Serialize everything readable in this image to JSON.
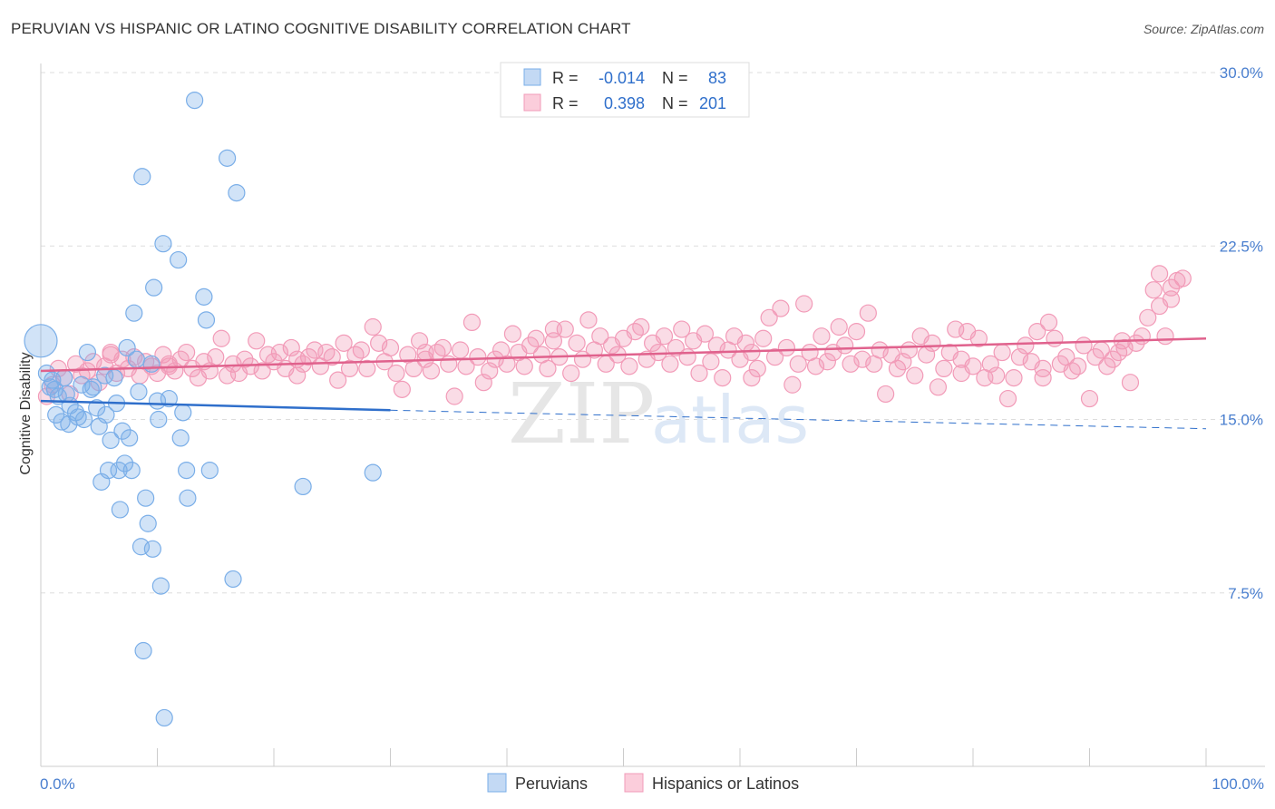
{
  "title": "PERUVIAN VS HISPANIC OR LATINO COGNITIVE DISABILITY CORRELATION CHART",
  "source": "Source: ZipAtlas.com",
  "watermark": {
    "zip": "ZIP",
    "atlas": "atlas"
  },
  "colors": {
    "blue": "#7aaee8",
    "blue_line": "#2f6fcb",
    "pink": "#f29bb8",
    "pink_line": "#e0628d",
    "axis_label": "#4a7fcf",
    "grid": "#dddddd"
  },
  "legend_top": {
    "rows": [
      {
        "r_label": "R =",
        "r_value": "-0.014",
        "n_label": "N =",
        "n_value": "83"
      },
      {
        "r_label": "R =",
        "r_value": "0.398",
        "n_label": "N =",
        "n_value": "201"
      }
    ]
  },
  "chart_data": {
    "type": "scatter",
    "ylabel": "Cognitive Disability",
    "x_axis": {
      "min": 0,
      "max": 100,
      "tick_labels": [
        "0.0%",
        "100.0%"
      ]
    },
    "y_axis": {
      "min": 0,
      "max": 30,
      "ticks": [
        7.5,
        15.0,
        22.5,
        30.0
      ],
      "tick_labels": [
        "7.5%",
        "15.0%",
        "22.5%",
        "30.0%"
      ]
    },
    "grid": true,
    "legend_position": "bottom",
    "series": [
      {
        "name": "Peruvians",
        "color": "#7aaee8",
        "trend": {
          "x": [
            0,
            30
          ],
          "y": [
            15.8,
            15.4
          ],
          "dashed_to": [
            100,
            14.6
          ]
        },
        "points": [
          [
            0,
            18.4
          ],
          [
            0.5,
            17.0
          ],
          [
            0.8,
            16.4
          ],
          [
            1,
            16.7
          ],
          [
            1.2,
            16.3
          ],
          [
            1.5,
            16.0
          ],
          [
            1.3,
            15.2
          ],
          [
            1.8,
            14.9
          ],
          [
            2,
            16.8
          ],
          [
            2.2,
            16.1
          ],
          [
            2.5,
            15.6
          ],
          [
            2.4,
            14.8
          ],
          [
            3,
            15.3
          ],
          [
            3.2,
            15.1
          ],
          [
            3.5,
            16.5
          ],
          [
            3.7,
            15.0
          ],
          [
            4,
            17.9
          ],
          [
            4.3,
            16.3
          ],
          [
            4.5,
            16.4
          ],
          [
            4.8,
            15.5
          ],
          [
            5,
            14.7
          ],
          [
            5.2,
            12.3
          ],
          [
            5.5,
            16.9
          ],
          [
            5.6,
            15.2
          ],
          [
            5.8,
            12.8
          ],
          [
            6,
            14.1
          ],
          [
            6.3,
            16.8
          ],
          [
            6.5,
            15.7
          ],
          [
            6.7,
            12.8
          ],
          [
            6.8,
            11.1
          ],
          [
            7,
            14.5
          ],
          [
            7.2,
            13.1
          ],
          [
            7.4,
            18.1
          ],
          [
            7.6,
            14.2
          ],
          [
            7.8,
            12.8
          ],
          [
            8,
            19.6
          ],
          [
            8.2,
            17.6
          ],
          [
            8.4,
            16.2
          ],
          [
            8.6,
            9.5
          ],
          [
            8.7,
            25.5
          ],
          [
            8.8,
            5.0
          ],
          [
            9,
            11.6
          ],
          [
            9.2,
            10.5
          ],
          [
            9.5,
            17.4
          ],
          [
            9.6,
            9.4
          ],
          [
            9.7,
            20.7
          ],
          [
            10,
            15.8
          ],
          [
            10.1,
            15.0
          ],
          [
            10.3,
            7.8
          ],
          [
            10.5,
            22.6
          ],
          [
            10.6,
            2.1
          ],
          [
            11,
            15.9
          ],
          [
            11.8,
            21.9
          ],
          [
            12.2,
            15.3
          ],
          [
            12.0,
            14.2
          ],
          [
            12.5,
            12.8
          ],
          [
            12.6,
            11.6
          ],
          [
            13.2,
            28.8
          ],
          [
            14,
            20.3
          ],
          [
            14.2,
            19.3
          ],
          [
            14.5,
            12.8
          ],
          [
            16,
            26.3
          ],
          [
            16.5,
            8.1
          ],
          [
            16.8,
            24.8
          ],
          [
            22.5,
            12.1
          ],
          [
            28.5,
            12.7
          ]
        ]
      },
      {
        "name": "Hispanics or Latinos",
        "color": "#f29bb8",
        "trend": {
          "x": [
            0,
            100
          ],
          "y": [
            17.1,
            18.5
          ]
        },
        "points": [
          [
            0.5,
            16.0
          ],
          [
            1,
            16.5
          ],
          [
            1.5,
            17.2
          ],
          [
            2,
            16.8
          ],
          [
            2.5,
            16.1
          ],
          [
            3,
            17.4
          ],
          [
            3.5,
            16.9
          ],
          [
            4,
            17.1
          ],
          [
            4.5,
            17.5
          ],
          [
            5,
            16.6
          ],
          [
            5.5,
            17.3
          ],
          [
            6,
            17.8
          ],
          [
            6.5,
            17.0
          ],
          [
            7,
            17.6
          ],
          [
            7.5,
            17.2
          ],
          [
            8,
            17.7
          ],
          [
            8.5,
            16.9
          ],
          [
            9,
            17.5
          ],
          [
            9.5,
            17.3
          ],
          [
            10,
            17.0
          ],
          [
            10.5,
            17.8
          ],
          [
            11,
            17.4
          ],
          [
            11.5,
            17.1
          ],
          [
            12,
            17.6
          ],
          [
            12.5,
            17.9
          ],
          [
            13,
            17.2
          ],
          [
            13.5,
            16.8
          ],
          [
            14,
            17.5
          ],
          [
            14.5,
            17.1
          ],
          [
            15,
            17.7
          ],
          [
            15.5,
            18.5
          ],
          [
            16,
            16.9
          ],
          [
            16.5,
            17.4
          ],
          [
            17,
            17.0
          ],
          [
            17.5,
            17.6
          ],
          [
            18,
            17.3
          ],
          [
            18.5,
            18.4
          ],
          [
            19,
            17.1
          ],
          [
            19.5,
            17.8
          ],
          [
            20,
            17.5
          ],
          [
            20.5,
            17.9
          ],
          [
            21,
            17.2
          ],
          [
            21.5,
            18.1
          ],
          [
            22,
            16.9
          ],
          [
            22.5,
            17.4
          ],
          [
            23,
            17.7
          ],
          [
            23.5,
            18.0
          ],
          [
            24,
            17.3
          ],
          [
            24.5,
            17.9
          ],
          [
            25,
            17.7
          ],
          [
            25.5,
            16.7
          ],
          [
            26,
            18.3
          ],
          [
            26.5,
            17.2
          ],
          [
            27,
            17.8
          ],
          [
            27.5,
            18.0
          ],
          [
            28,
            17.2
          ],
          [
            28.5,
            19.0
          ],
          [
            29,
            18.3
          ],
          [
            29.5,
            17.5
          ],
          [
            30,
            18.1
          ],
          [
            30.5,
            17.0
          ],
          [
            31,
            16.3
          ],
          [
            31.5,
            17.8
          ],
          [
            32,
            17.2
          ],
          [
            32.5,
            18.4
          ],
          [
            33,
            17.6
          ],
          [
            33.5,
            17.1
          ],
          [
            34,
            17.9
          ],
          [
            34.5,
            18.1
          ],
          [
            35,
            17.4
          ],
          [
            35.5,
            16.0
          ],
          [
            36,
            18.0
          ],
          [
            36.5,
            17.3
          ],
          [
            37,
            19.2
          ],
          [
            37.5,
            17.7
          ],
          [
            38,
            16.6
          ],
          [
            38.5,
            17.1
          ],
          [
            39,
            17.6
          ],
          [
            39.5,
            18.0
          ],
          [
            40,
            17.4
          ],
          [
            40.5,
            18.7
          ],
          [
            41,
            17.9
          ],
          [
            41.5,
            17.3
          ],
          [
            42,
            18.2
          ],
          [
            42.5,
            18.5
          ],
          [
            43,
            17.8
          ],
          [
            43.5,
            17.2
          ],
          [
            44,
            18.4
          ],
          [
            44.5,
            17.7
          ],
          [
            45,
            18.9
          ],
          [
            45.5,
            17.0
          ],
          [
            46,
            18.3
          ],
          [
            46.5,
            17.6
          ],
          [
            47,
            19.3
          ],
          [
            47.5,
            18.0
          ],
          [
            48,
            18.6
          ],
          [
            48.5,
            17.4
          ],
          [
            49,
            18.2
          ],
          [
            49.5,
            17.8
          ],
          [
            50,
            18.5
          ],
          [
            50.5,
            17.3
          ],
          [
            51,
            18.8
          ],
          [
            51.5,
            19.0
          ],
          [
            52,
            17.6
          ],
          [
            52.5,
            18.3
          ],
          [
            53,
            17.9
          ],
          [
            53.5,
            18.6
          ],
          [
            54,
            17.4
          ],
          [
            54.5,
            18.1
          ],
          [
            55,
            18.9
          ],
          [
            55.5,
            17.7
          ],
          [
            56,
            18.4
          ],
          [
            56.5,
            17.0
          ],
          [
            57,
            18.7
          ],
          [
            57.5,
            17.5
          ],
          [
            58,
            18.2
          ],
          [
            58.5,
            16.8
          ],
          [
            59,
            18.0
          ],
          [
            59.5,
            18.6
          ],
          [
            60,
            17.6
          ],
          [
            60.5,
            18.3
          ],
          [
            61,
            17.9
          ],
          [
            61.5,
            17.2
          ],
          [
            62,
            18.5
          ],
          [
            62.5,
            19.4
          ],
          [
            63,
            17.7
          ],
          [
            63.5,
            19.8
          ],
          [
            64,
            18.1
          ],
          [
            64.5,
            16.5
          ],
          [
            65,
            17.4
          ],
          [
            65.5,
            20.0
          ],
          [
            66,
            17.9
          ],
          [
            66.5,
            17.3
          ],
          [
            67,
            18.6
          ],
          [
            67.5,
            17.5
          ],
          [
            68,
            17.9
          ],
          [
            68.5,
            19.0
          ],
          [
            69,
            18.2
          ],
          [
            69.5,
            17.4
          ],
          [
            70,
            18.8
          ],
          [
            70.5,
            17.6
          ],
          [
            71,
            19.6
          ],
          [
            71.5,
            17.4
          ],
          [
            72,
            18.0
          ],
          [
            72.5,
            16.1
          ],
          [
            73,
            17.8
          ],
          [
            73.5,
            17.2
          ],
          [
            74,
            17.5
          ],
          [
            74.5,
            18.0
          ],
          [
            75,
            16.9
          ],
          [
            75.5,
            18.6
          ],
          [
            76,
            17.8
          ],
          [
            76.5,
            18.3
          ],
          [
            77,
            16.4
          ],
          [
            77.5,
            17.2
          ],
          [
            78,
            17.9
          ],
          [
            78.5,
            18.9
          ],
          [
            79,
            17.6
          ],
          [
            79.5,
            18.8
          ],
          [
            80,
            17.3
          ],
          [
            80.5,
            18.5
          ],
          [
            81,
            16.8
          ],
          [
            81.5,
            17.4
          ],
          [
            82,
            16.9
          ],
          [
            82.5,
            17.9
          ],
          [
            83,
            15.9
          ],
          [
            83.5,
            16.8
          ],
          [
            84,
            17.7
          ],
          [
            84.5,
            18.2
          ],
          [
            85,
            17.5
          ],
          [
            85.5,
            18.8
          ],
          [
            86,
            17.2
          ],
          [
            86.5,
            19.2
          ],
          [
            87,
            18.5
          ],
          [
            87.5,
            17.4
          ],
          [
            88,
            17.7
          ],
          [
            88.5,
            17.1
          ],
          [
            89,
            17.3
          ],
          [
            89.5,
            18.2
          ],
          [
            90,
            15.9
          ],
          [
            90.5,
            17.7
          ],
          [
            91,
            18.0
          ],
          [
            91.5,
            17.3
          ],
          [
            92,
            17.6
          ],
          [
            92.5,
            17.9
          ],
          [
            93,
            18.1
          ],
          [
            93.5,
            16.6
          ],
          [
            94,
            18.3
          ],
          [
            94.5,
            18.6
          ],
          [
            95,
            19.4
          ],
          [
            95.5,
            20.6
          ],
          [
            96,
            21.3
          ],
          [
            96.5,
            18.6
          ],
          [
            97,
            20.2
          ],
          [
            97.5,
            21.0
          ],
          [
            97.0,
            20.7
          ],
          [
            96.0,
            19.9
          ],
          [
            92.8,
            18.4
          ],
          [
            98.0,
            21.1
          ],
          [
            86.0,
            16.8
          ],
          [
            79.0,
            17.0
          ],
          [
            61.0,
            16.8
          ],
          [
            44.0,
            18.9
          ],
          [
            33.0,
            17.9
          ],
          [
            22.0,
            17.6
          ],
          [
            11.0,
            17.3
          ],
          [
            6.0,
            17.9
          ]
        ]
      }
    ]
  }
}
